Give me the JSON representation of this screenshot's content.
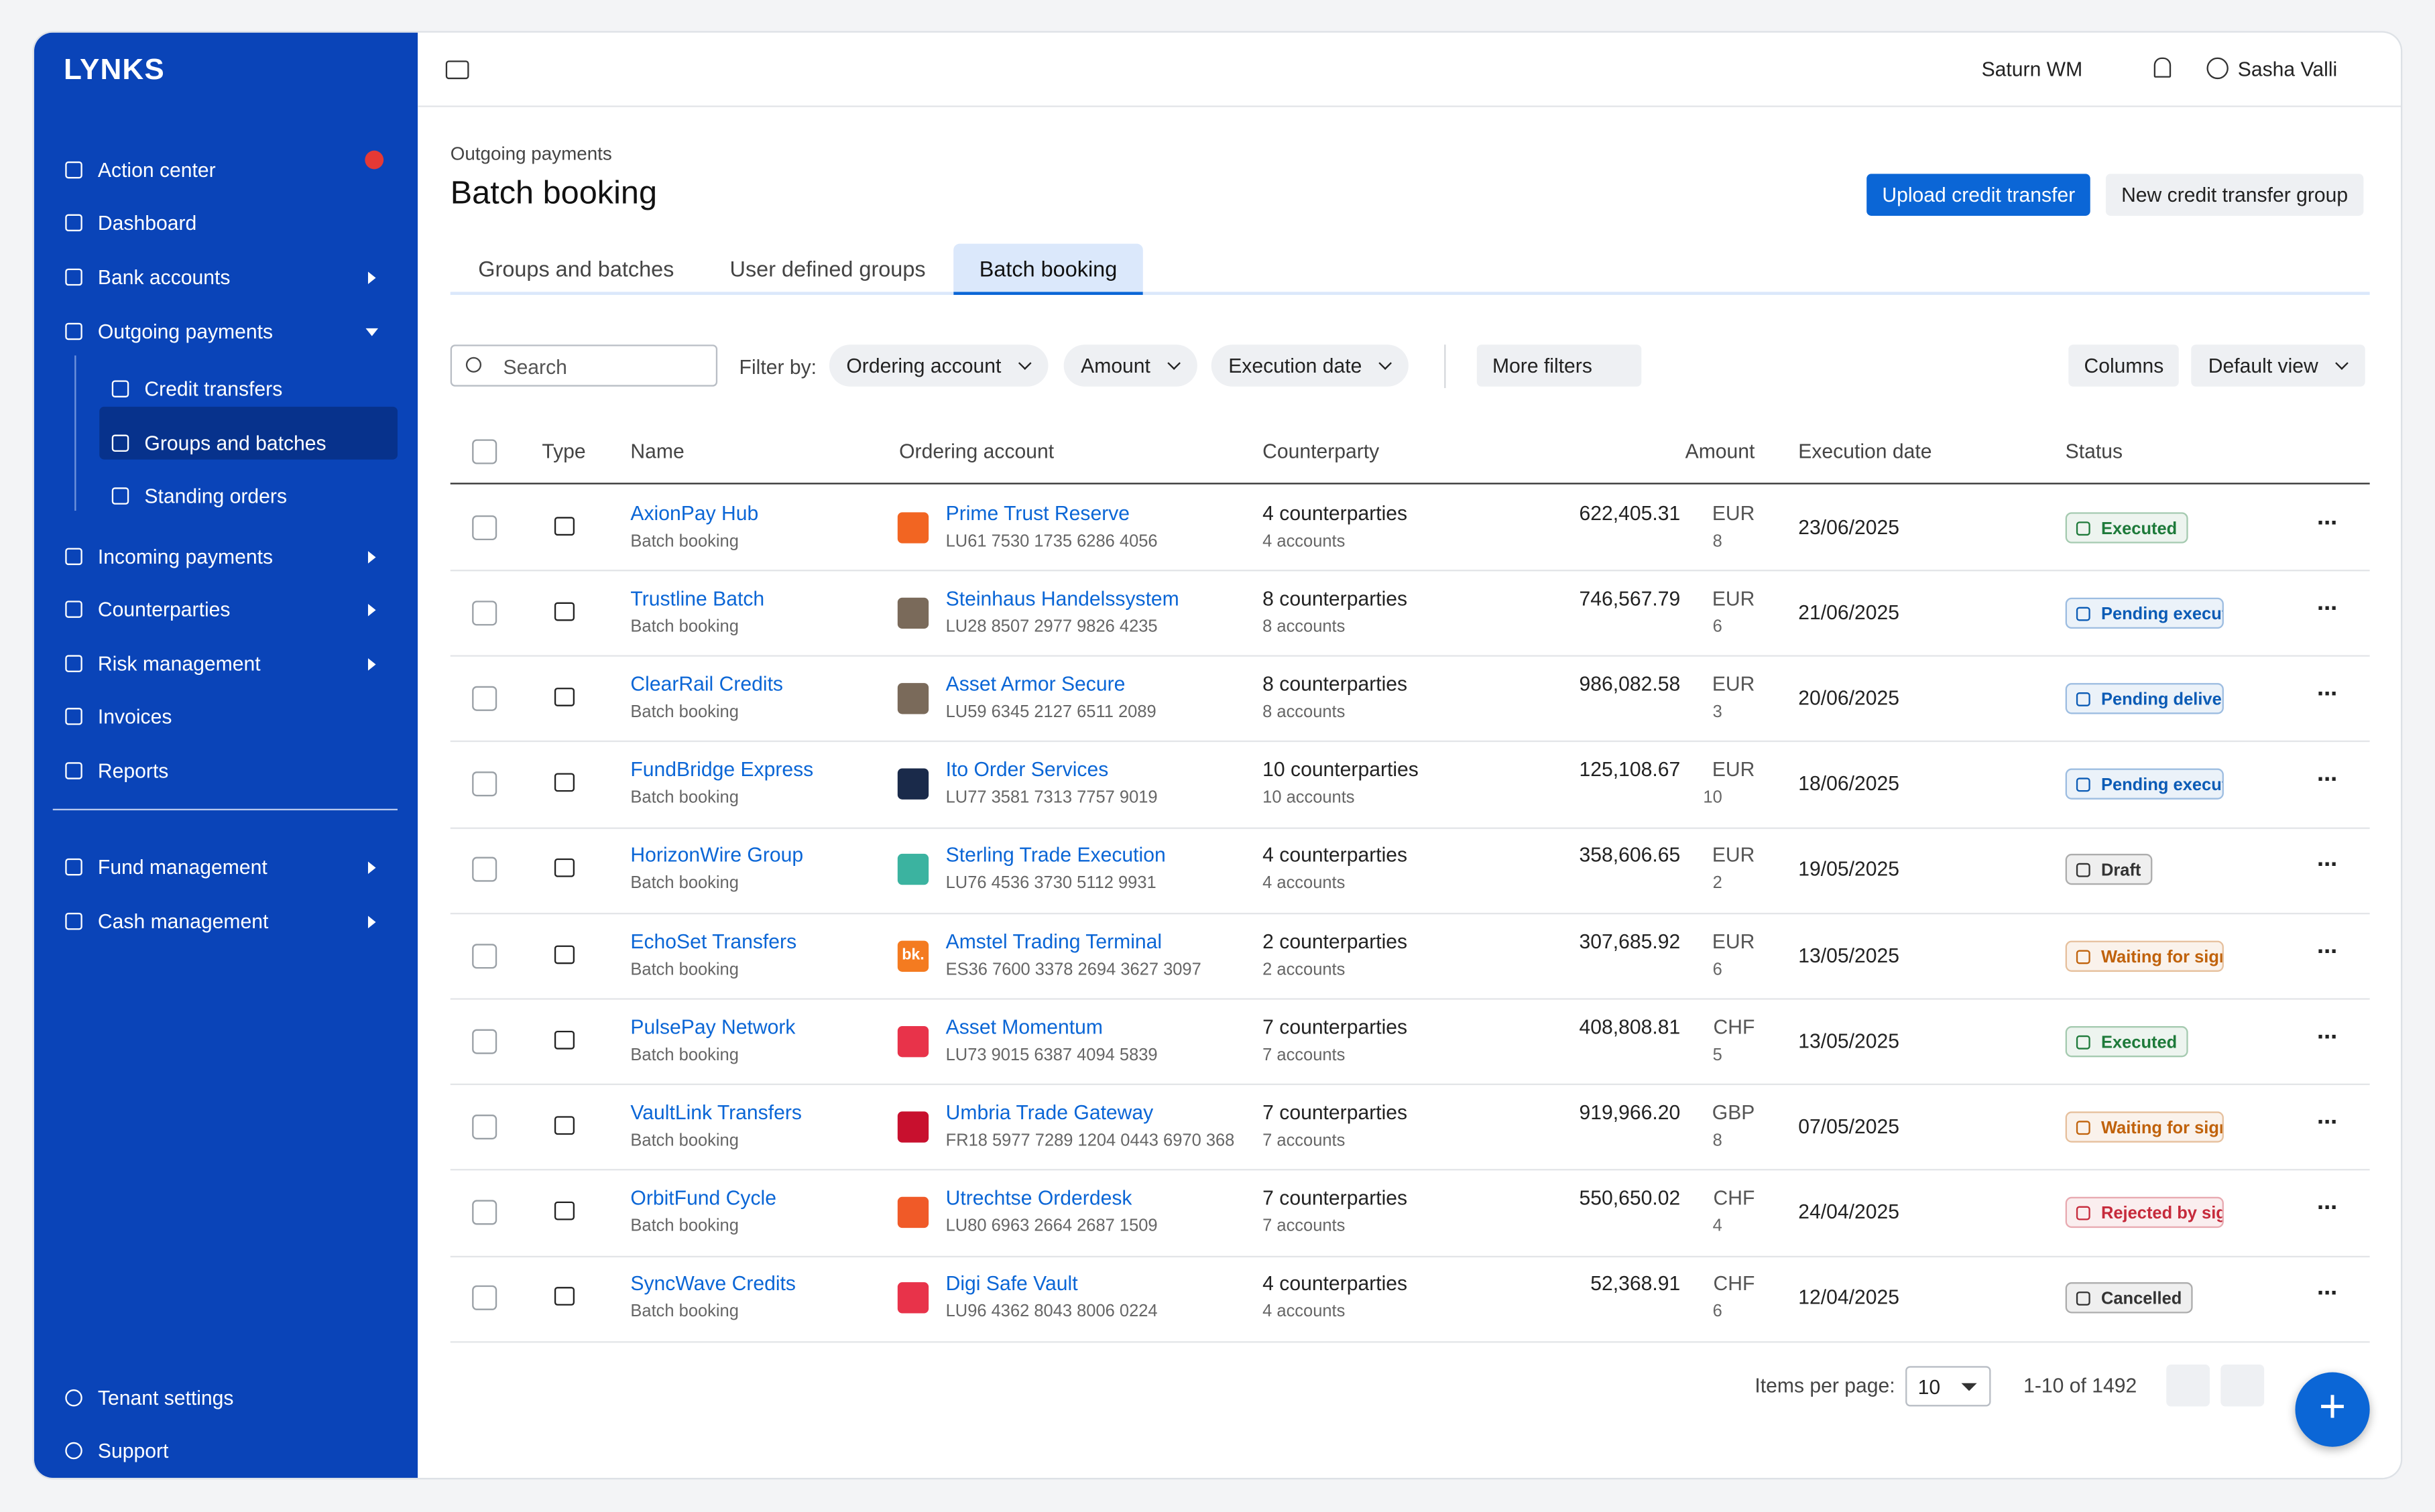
{
  "brand": "LYNKS",
  "sidebar": {
    "items": [
      "Action center",
      "Dashboard",
      "Bank accounts",
      "Outgoing payments",
      "Incoming payments",
      "Counterparties",
      "Risk management",
      "Invoices",
      "Reports",
      "Fund management",
      "Cash management"
    ],
    "subitems": [
      "Credit transfers",
      "Groups and batches",
      "Standing orders"
    ],
    "bottom": [
      "Tenant settings",
      "Support"
    ]
  },
  "topbar": {
    "organization": "Saturn WM",
    "user": "Sasha Valli"
  },
  "header": {
    "breadcrumb": "Outgoing payments",
    "title": "Batch booking",
    "primary_button": "Upload credit transfer",
    "secondary_button": "New credit transfer group"
  },
  "tabs": [
    "Groups and batches",
    "User defined groups",
    "Batch booking"
  ],
  "filters": {
    "search": "Search",
    "filter_by": "Filter by:",
    "chips": [
      "Ordering account",
      "Amount",
      "Execution date"
    ],
    "more": "More filters",
    "columns": "Columns",
    "view": "Default view"
  },
  "table": {
    "columns": [
      "Type",
      "Name",
      "Ordering account",
      "Counterparty",
      "Amount",
      "Execution date",
      "Status"
    ],
    "rows": [
      {
        "name": "AxionPay Hub",
        "sub": "Batch booking",
        "account": "Prime Trust Reserve",
        "iban": "LU61 7530 1735 6286 4056",
        "counterparties": "4 counterparties",
        "accounts": "4 accounts",
        "amount": "622,405.31",
        "currency": "EUR",
        "count": "8",
        "date": "23/06/2025",
        "status": "Executed",
        "status_color": "#1e7a3a",
        "icon_color": "#f26522"
      },
      {
        "name": "Trustline Batch",
        "sub": "Batch booking",
        "account": "Steinhaus Handelssystem",
        "iban": "LU28 8507 2977 9826 4235",
        "counterparties": "8 counterparties",
        "accounts": "8 accounts",
        "amount": "746,567.79",
        "currency": "EUR",
        "count": "6",
        "date": "21/06/2025",
        "status": "Pending execution b",
        "status_color": "#0b5bb5",
        "icon_color": "#7a6a5a"
      },
      {
        "name": "ClearRail Credits",
        "sub": "Batch booking",
        "account": "Asset Armor Secure",
        "iban": "LU59 6345 2127 6511 2089",
        "counterparties": "8 counterparties",
        "accounts": "8 accounts",
        "amount": "986,082.58",
        "currency": "EUR",
        "count": "3",
        "date": "20/06/2025",
        "status": "Pending delivery to b",
        "status_color": "#0b5bb5",
        "icon_color": "#7a6a5a"
      },
      {
        "name": "FundBridge Express",
        "sub": "Batch booking",
        "account": "Ito Order Services",
        "iban": "LU77 3581 7313 7757 9019",
        "counterparties": "10 counterparties",
        "accounts": "10 accounts",
        "amount": "125,108.67",
        "currency": "EUR",
        "count": "10",
        "date": "18/06/2025",
        "status": "Pending execution b",
        "status_color": "#0b5bb5",
        "icon_color": "#1a2a4a"
      },
      {
        "name": "HorizonWire Group",
        "sub": "Batch booking",
        "account": "Sterling Trade Execution",
        "iban": "LU76 4536 3730 5112 9931",
        "counterparties": "4 counterparties",
        "accounts": "4 accounts",
        "amount": "358,606.65",
        "currency": "EUR",
        "count": "2",
        "date": "19/05/2025",
        "status": "Draft",
        "status_color": "#333333",
        "icon_color": "#3bb3a0"
      },
      {
        "name": "EchoSet Transfers",
        "sub": "Batch booking",
        "account": "Amstel Trading Terminal",
        "iban": "ES36 7600 3378 2694 3627 3097",
        "counterparties": "2 counterparties",
        "accounts": "2 accounts",
        "amount": "307,685.92",
        "currency": "EUR",
        "count": "6",
        "date": "13/05/2025",
        "status": "Waiting for signature",
        "status_color": "#c0620b",
        "icon_color": "#f47b20",
        "icon_text": "bk."
      },
      {
        "name": "PulsePay Network",
        "sub": "Batch booking",
        "account": "Asset Momentum",
        "iban": "LU73 9015 6387 4094 5839",
        "counterparties": "7 counterparties",
        "accounts": "7 accounts",
        "amount": "408,808.81",
        "currency": "CHF",
        "count": "5",
        "date": "13/05/2025",
        "status": "Executed",
        "status_color": "#1e7a3a",
        "icon_color": "#e8334a"
      },
      {
        "name": "VaultLink Transfers",
        "sub": "Batch booking",
        "account": "Umbria Trade Gateway",
        "iban": "FR18 5977 7289 1204 0443 6970 368",
        "counterparties": "7 counterparties",
        "accounts": "7 accounts",
        "amount": "919,966.20",
        "currency": "GBP",
        "count": "8",
        "date": "07/05/2025",
        "status": "Waiting for signature",
        "status_color": "#c0620b",
        "icon_color": "#c8102e"
      },
      {
        "name": "OrbitFund Cycle",
        "sub": "Batch booking",
        "account": "Utrechtse Orderdesk",
        "iban": "LU80 6963 2664 2687 1509",
        "counterparties": "7 counterparties",
        "accounts": "7 accounts",
        "amount": "550,650.02",
        "currency": "CHF",
        "count": "4",
        "date": "24/04/2025",
        "status": "Rejected by signator",
        "status_color": "#c62a3b",
        "icon_color": "#f05a28"
      },
      {
        "name": "SyncWave Credits",
        "sub": "Batch booking",
        "account": "Digi Safe Vault",
        "iban": "LU96 4362 8043 8006 0224",
        "counterparties": "4 counterparties",
        "accounts": "4 accounts",
        "amount": "52,368.91",
        "currency": "CHF",
        "count": "6",
        "date": "12/04/2025",
        "status": "Cancelled",
        "status_color": "#333333",
        "icon_color": "#e8334a"
      }
    ]
  },
  "pagination": {
    "label": "Items per page:",
    "per_page": "10",
    "range": "1-10 of 1492"
  }
}
